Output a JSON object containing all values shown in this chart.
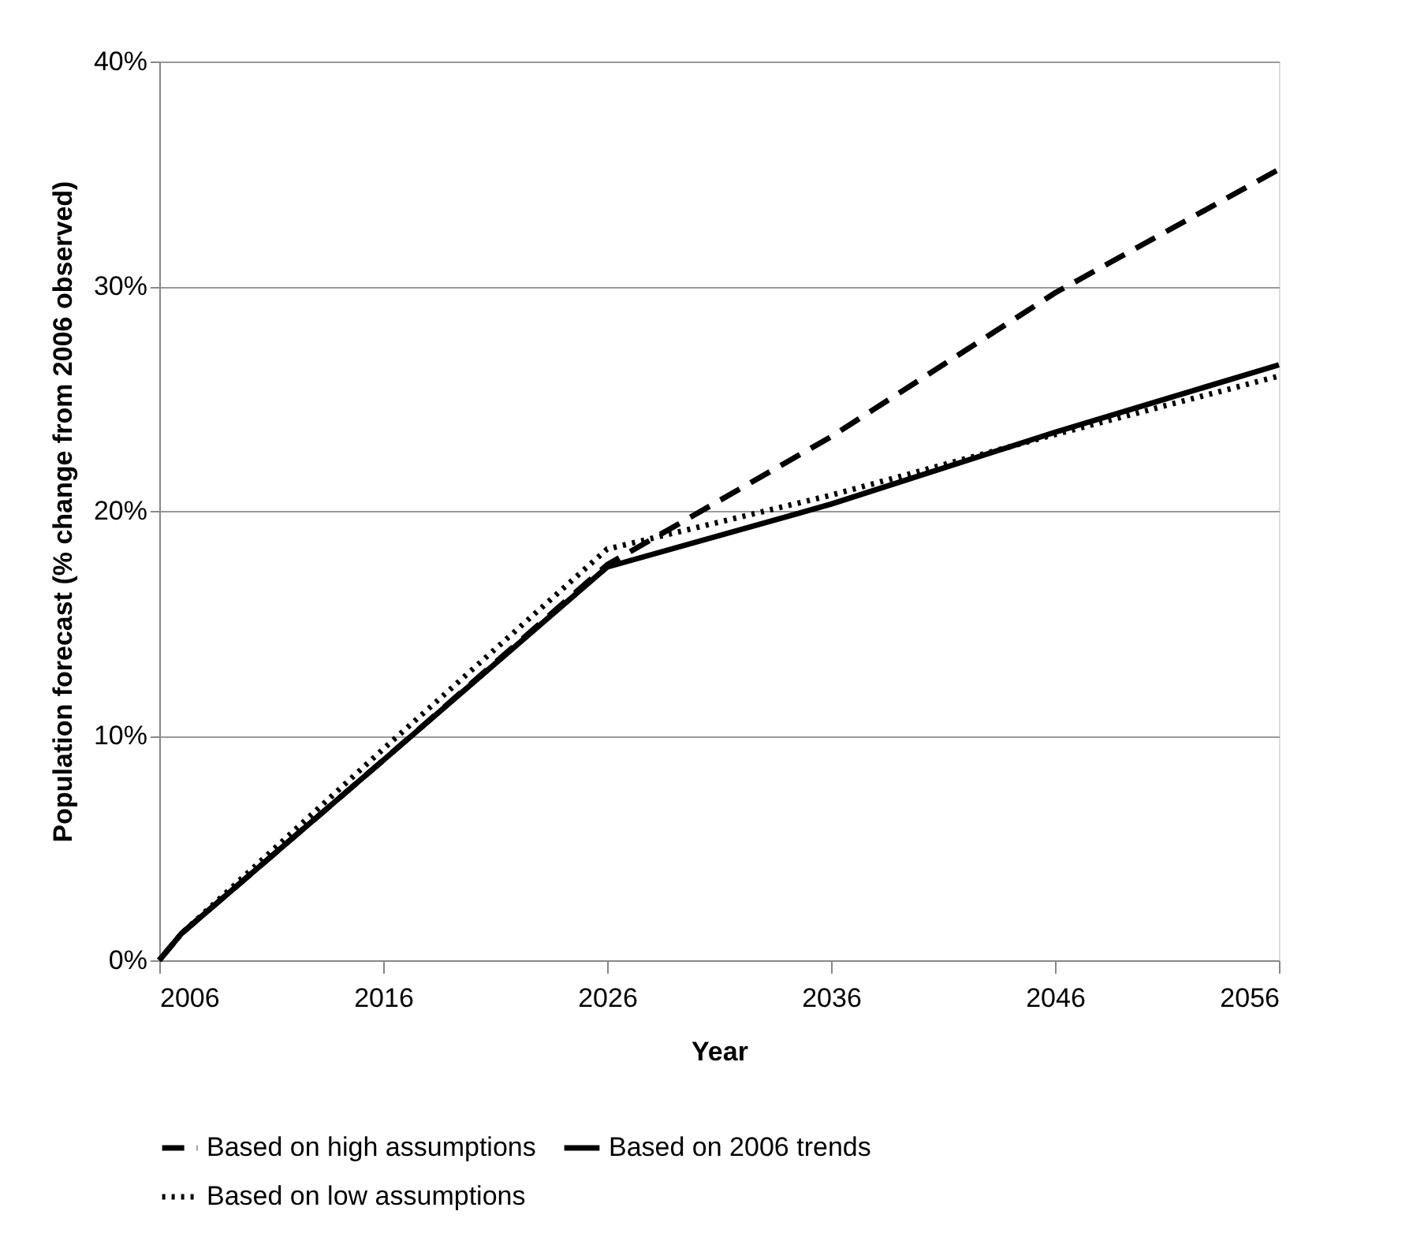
{
  "chart_data": {
    "type": "line",
    "xlabel": "Year",
    "ylabel": "Population forecast (% change from 2006 observed)",
    "x": [
      2006,
      2007,
      2016,
      2026,
      2036,
      2046,
      2056
    ],
    "series": [
      {
        "name": "Based on high assumptions",
        "color": "#000000",
        "line_style": "dashed",
        "values": [
          0,
          1.2,
          8.9,
          17.6,
          23.3,
          29.7,
          35.2
        ]
      },
      {
        "name": "Based on 2006 trends",
        "color": "#000000",
        "line_style": "solid",
        "values": [
          0,
          1.2,
          8.9,
          17.5,
          20.3,
          23.5,
          26.5
        ]
      },
      {
        "name": "Based on low assumptions",
        "color": "#000000",
        "line_style": "dotted",
        "values": [
          0,
          1.2,
          9.4,
          18.3,
          20.7,
          23.4,
          26.0
        ]
      }
    ],
    "xlim": [
      2006,
      2056
    ],
    "xticks": [
      2006,
      2016,
      2026,
      2036,
      2046,
      2056
    ],
    "ylim": [
      0,
      40
    ],
    "yticks": [
      {
        "value": 0,
        "label": "0%"
      },
      {
        "value": 10,
        "label": "10%"
      },
      {
        "value": 20,
        "label": "20%"
      },
      {
        "value": 30,
        "label": "30%"
      },
      {
        "value": 40,
        "label": "40%"
      }
    ],
    "grid": "y",
    "legend": "bottom",
    "marker": "none"
  }
}
